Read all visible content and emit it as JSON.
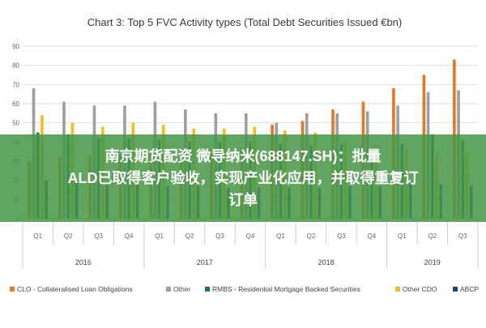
{
  "chart_data": {
    "type": "bar",
    "title": "Chart 3: Top 5 FVC Activity types (Total Debt Securities Issued €bn)",
    "ylim": [
      0,
      90
    ],
    "yticks": [
      0,
      10,
      20,
      30,
      40,
      50,
      60,
      70,
      80,
      90
    ],
    "grid": true,
    "legend_position": "bottom",
    "categories": [
      "Q1",
      "Q2",
      "Q3",
      "Q4",
      "Q1",
      "Q2",
      "Q3",
      "Q4",
      "Q1",
      "Q2",
      "Q3",
      "Q4",
      "Q1",
      "Q2",
      "Q3"
    ],
    "years": [
      {
        "label": "2016",
        "quarters": 4
      },
      {
        "label": "2017",
        "quarters": 4
      },
      {
        "label": "2018",
        "quarters": 4
      },
      {
        "label": "2019",
        "quarters": 3
      }
    ],
    "series": [
      {
        "name": "CLO - Collateralised Loan Obligations",
        "color": "#e8761e",
        "values": [
          30,
          32,
          33,
          33,
          34,
          35,
          36,
          37,
          49,
          51,
          57,
          61,
          68,
          75,
          83
        ]
      },
      {
        "name": "Other",
        "color": "#9e9e9e",
        "values": [
          68,
          61,
          59,
          59,
          61,
          57,
          55,
          55,
          50,
          55,
          55,
          56,
          59,
          66,
          67
        ]
      },
      {
        "name": "RMBS - Residential Mortgage Backed Securities",
        "color": "#1f6f80",
        "values": [
          45,
          44,
          42,
          42,
          41,
          40,
          40,
          40,
          39,
          38,
          39,
          37,
          39,
          44,
          41
        ]
      },
      {
        "name": "Other CDO",
        "color": "#f2bd1d",
        "values": [
          54,
          50,
          48,
          50,
          49,
          47,
          47,
          48,
          46,
          45,
          40,
          38,
          36,
          34,
          35
        ]
      },
      {
        "name": "ABCP",
        "color": "#1f3f8a",
        "values": [
          20,
          20,
          19,
          18,
          17,
          17,
          16,
          16,
          16,
          16,
          17,
          17,
          18,
          18,
          17
        ]
      }
    ]
  },
  "overlay": {
    "line1": "南京期货配资 微导纳米(688147.SH)：批量",
    "line2": "ALD已取得客户验收，实现产业化应用，并取得重复订",
    "line3": "订单"
  }
}
